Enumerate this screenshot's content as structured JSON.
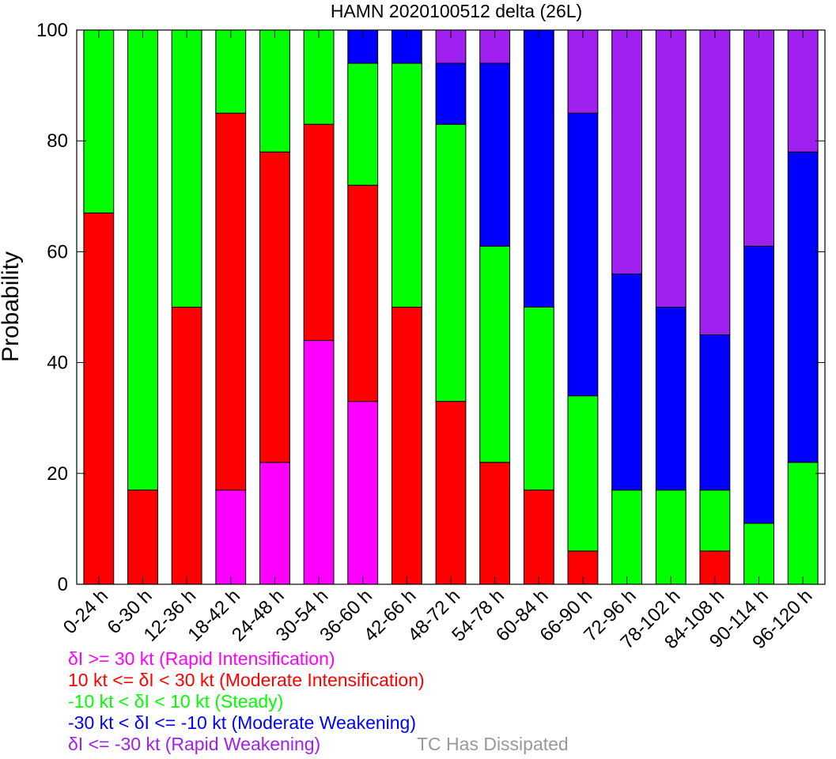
{
  "chart_data": {
    "type": "bar",
    "stacked": true,
    "title": "HAMN 2020100512 delta (26L)",
    "ylabel": "Probability",
    "xlabel": "",
    "ylim": [
      0,
      100
    ],
    "yticks": [
      "0",
      "20",
      "40",
      "60",
      "80",
      "100"
    ],
    "categories": [
      "0-24 h",
      "6-30 h",
      "12-36 h",
      "18-42 h",
      "24-48 h",
      "30-54 h",
      "36-60 h",
      "42-66 h",
      "48-72 h",
      "54-78 h",
      "60-84 h",
      "66-90 h",
      "72-96 h",
      "78-102 h",
      "84-108 h",
      "90-114 h",
      "96-120 h"
    ],
    "grid": false,
    "series": [
      {
        "name": "δI >= 30 kt (Rapid Intensification)",
        "color": "#ff00ff",
        "values": [
          0,
          0,
          0,
          17,
          22,
          44,
          33,
          0,
          0,
          0,
          0,
          0,
          0,
          0,
          0,
          0,
          0
        ]
      },
      {
        "name": "10 kt <= δI < 30 kt (Moderate Intensification)",
        "color": "#ff0000",
        "values": [
          67,
          17,
          50,
          68,
          56,
          39,
          39,
          50,
          33,
          22,
          17,
          6,
          0,
          0,
          6,
          0,
          0
        ]
      },
      {
        "name": "-10 kt < δI < 10 kt (Steady)",
        "color": "#00ff00",
        "values": [
          33,
          83,
          50,
          15,
          22,
          17,
          22,
          44,
          50,
          39,
          33,
          28,
          17,
          17,
          11,
          11,
          22
        ]
      },
      {
        "name": "-30 kt < δI <= -10 kt (Moderate Weakening)",
        "color": "#0000ff",
        "values": [
          0,
          0,
          0,
          0,
          0,
          0,
          6,
          6,
          11,
          33,
          50,
          51,
          39,
          33,
          28,
          50,
          56
        ]
      },
      {
        "name": "δI <= -30 kt (Rapid Weakening)",
        "color": "#a020f0",
        "values": [
          0,
          0,
          0,
          0,
          0,
          0,
          0,
          0,
          6,
          6,
          0,
          15,
          44,
          50,
          55,
          39,
          22
        ]
      }
    ],
    "legend": [
      {
        "text": "δI >= 30 kt (Rapid Intensification)",
        "color": "#ff00ff"
      },
      {
        "text": "10 kt <= δI < 30 kt (Moderate Intensification)",
        "color": "#ff0000"
      },
      {
        "text": "-10 kt < δI < 10 kt (Steady)",
        "color": "#00ff00"
      },
      {
        "text": "-30 kt < δI <= -10 kt (Moderate Weakening)",
        "color": "#0000ff"
      },
      {
        "text": "δI <= -30 kt (Rapid Weakening)",
        "color": "#a020f0"
      }
    ],
    "dissipated_label": {
      "text": "TC Has Dissipated",
      "color": "#999999"
    },
    "legend_placement": "bottom-left"
  }
}
